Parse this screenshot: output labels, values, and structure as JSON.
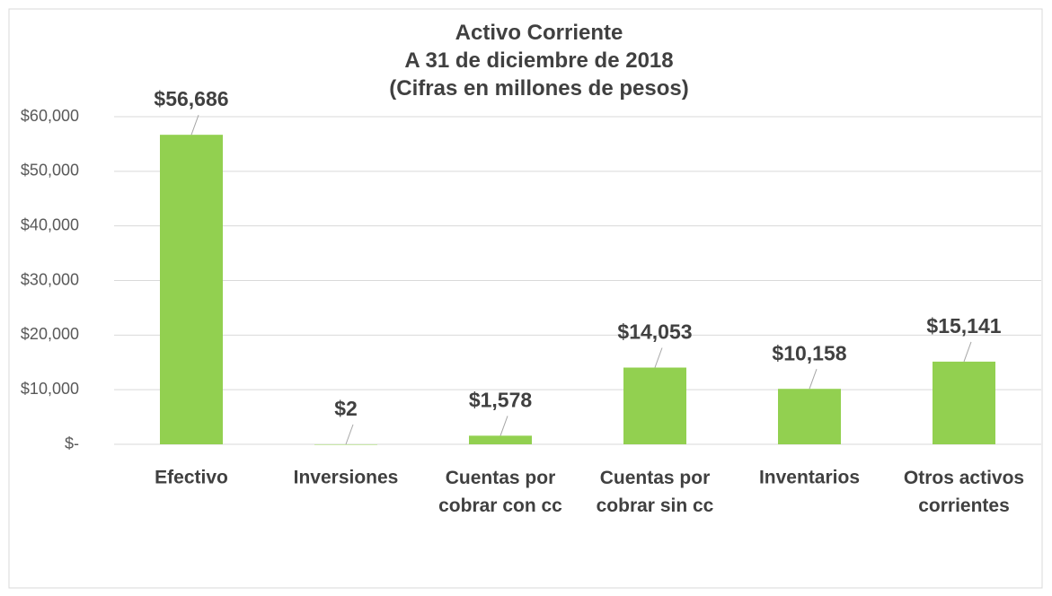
{
  "chart_data": {
    "type": "bar",
    "title": "Activo Corriente\nA 31 de diciembre de 2018\n(Cifras en millones de pesos)",
    "categories": [
      "Efectivo",
      "Inversiones",
      "Cuentas por\ncobrar con cc",
      "Cuentas por\ncobrar sin cc",
      "Inventarios",
      "Otros activos\ncorrientes"
    ],
    "values": [
      56686,
      2,
      1578,
      14053,
      10158,
      15141
    ],
    "value_labels": [
      "$56,686",
      "$2",
      "$1,578",
      "$14,053",
      "$10,158",
      "$15,141"
    ],
    "color": "#92d050",
    "ylim": [
      0,
      60000
    ],
    "yticks": [
      {
        "value": 0,
        "label": "$-"
      },
      {
        "value": 10000,
        "label": "$10,000"
      },
      {
        "value": 20000,
        "label": "$20,000"
      },
      {
        "value": 30000,
        "label": "$30,000"
      },
      {
        "value": 40000,
        "label": "$40,000"
      },
      {
        "value": 50000,
        "label": "$50,000"
      },
      {
        "value": 60000,
        "label": "$60,000"
      }
    ],
    "grid": true
  }
}
